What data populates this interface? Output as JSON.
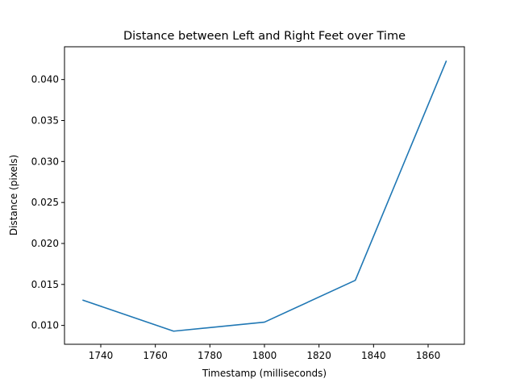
{
  "chart_data": {
    "type": "line",
    "title": "Distance between Left and Right Feet over Time",
    "xlabel": "Timestamp (milliseconds)",
    "ylabel": "Distance (pixels)",
    "xlim": [
      1726.7,
      1873.3
    ],
    "ylim": [
      0.0077,
      0.044
    ],
    "xticks": [
      1740,
      1760,
      1780,
      1800,
      1820,
      1840,
      1860
    ],
    "xtick_labels": [
      "1740",
      "1760",
      "1780",
      "1800",
      "1820",
      "1840",
      "1860"
    ],
    "yticks": [
      0.01,
      0.015,
      0.02,
      0.025,
      0.03,
      0.035,
      0.04
    ],
    "ytick_labels": [
      "0.010",
      "0.015",
      "0.020",
      "0.025",
      "0.030",
      "0.035",
      "0.040"
    ],
    "grid": false,
    "series": [
      {
        "color": "#1f77b4",
        "x": [
          1733.3,
          1766.7,
          1800.0,
          1833.3,
          1866.7
        ],
        "y": [
          0.0131,
          0.0093,
          0.0104,
          0.0155,
          0.0423
        ]
      }
    ]
  }
}
